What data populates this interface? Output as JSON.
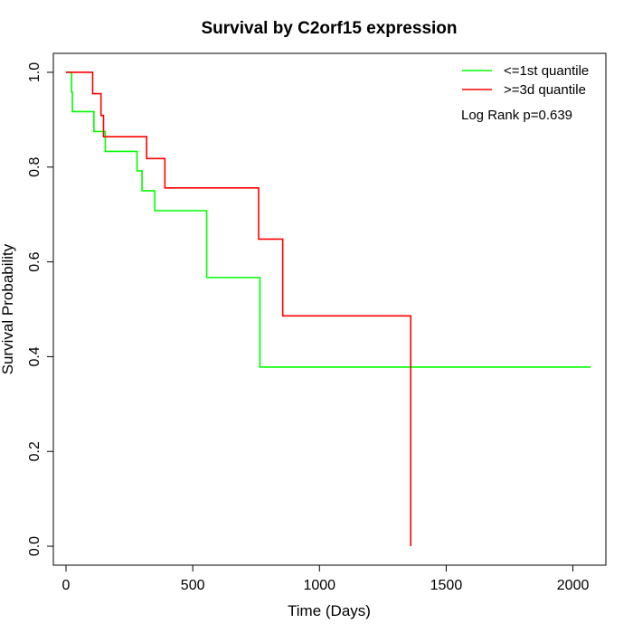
{
  "chart_data": {
    "type": "line",
    "title": "Survival by C2orf15 expression",
    "xlabel": "Time (Days)",
    "ylabel": "Survival Probability",
    "xlim": [
      -50,
      2130
    ],
    "ylim": [
      -0.04,
      1.04
    ],
    "x_ticks": [
      0,
      500,
      1000,
      1500,
      2000
    ],
    "y_ticks": [
      0.0,
      0.2,
      0.4,
      0.6,
      0.8,
      1.0
    ],
    "x_tick_labels": [
      "0",
      "500",
      "1000",
      "1500",
      "2000"
    ],
    "y_tick_labels": [
      "0.0",
      "0.2",
      "0.4",
      "0.6",
      "0.8",
      "1.0"
    ],
    "grid": false,
    "legend_position": "top-right",
    "annotation": "Log Rank p=0.639",
    "series": [
      {
        "name": "<=1st quantile",
        "color": "#00ff00",
        "steps": [
          [
            0,
            1.0
          ],
          [
            22,
            0.958
          ],
          [
            25,
            0.917
          ],
          [
            110,
            0.875
          ],
          [
            155,
            0.833
          ],
          [
            280,
            0.792
          ],
          [
            300,
            0.75
          ],
          [
            350,
            0.708
          ],
          [
            555,
            0.567
          ],
          [
            765,
            0.378
          ],
          [
            2070,
            0.378
          ]
        ]
      },
      {
        "name": ">=3d quantile",
        "color": "#ff0000",
        "steps": [
          [
            0,
            1.0
          ],
          [
            105,
            0.955
          ],
          [
            138,
            0.909
          ],
          [
            148,
            0.864
          ],
          [
            318,
            0.818
          ],
          [
            390,
            0.756
          ],
          [
            760,
            0.648
          ],
          [
            855,
            0.486
          ],
          [
            1360,
            0.0
          ]
        ]
      }
    ]
  }
}
